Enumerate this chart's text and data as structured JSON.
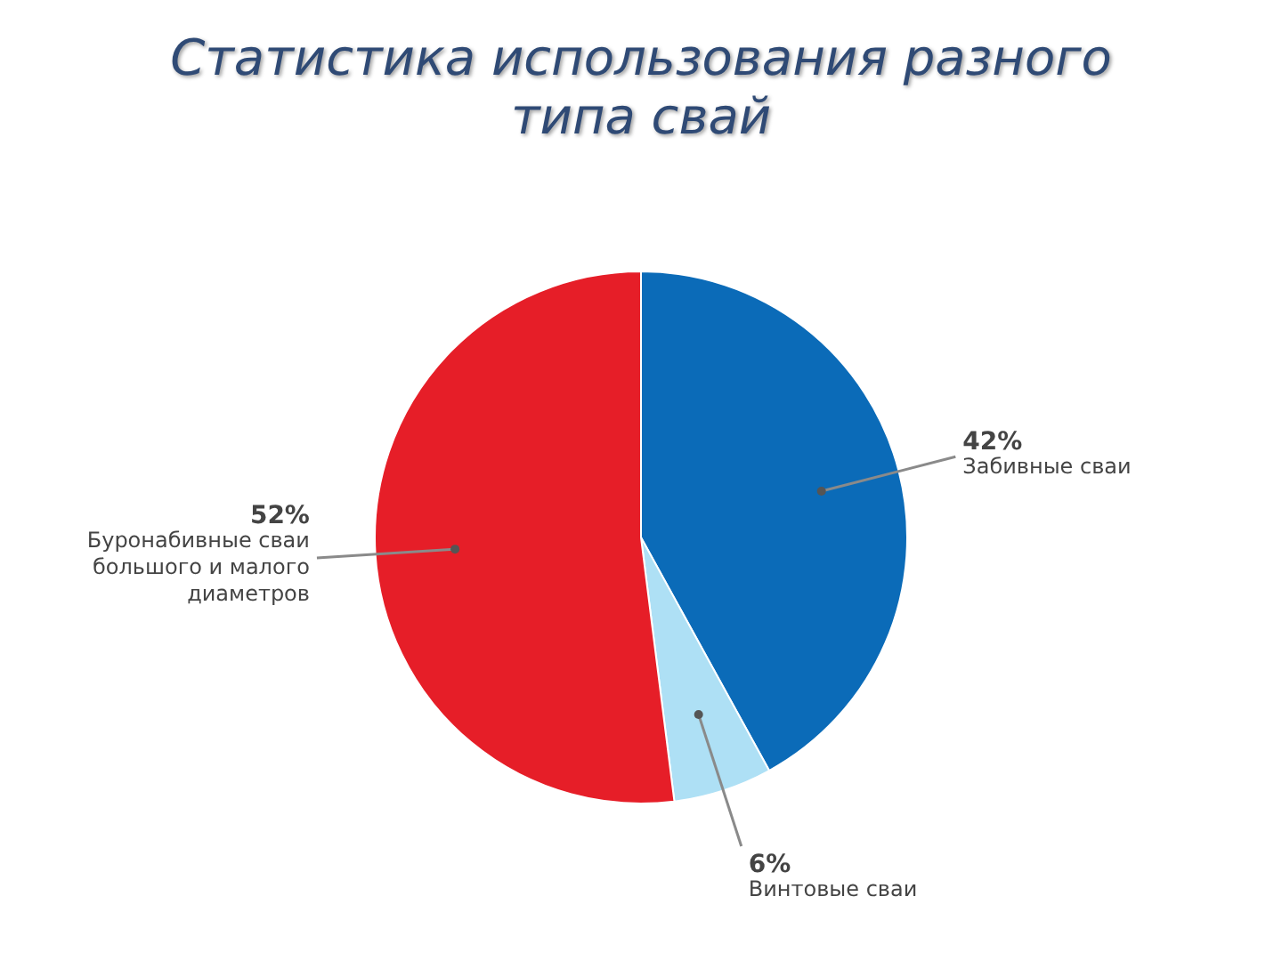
{
  "chart_data": {
    "type": "pie",
    "title": "Статистика использования разного типа свай",
    "categories": [
      "Забивные сваи",
      "Винтовые сваи",
      "Буронабивные сваи большого и малого диаметров"
    ],
    "values": [
      42,
      6,
      52
    ],
    "colors": [
      "#0b6bb8",
      "#aee0f5",
      "#e61e28"
    ],
    "value_labels": [
      "42%",
      "6%",
      "52%"
    ],
    "legend": false
  }
}
